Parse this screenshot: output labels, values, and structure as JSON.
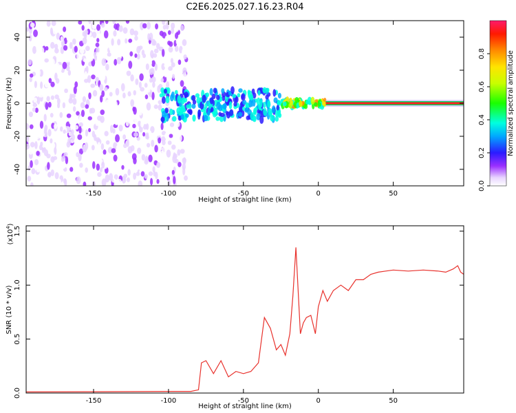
{
  "title": "C2E6.2025.027.16.23.R04",
  "chart_data": [
    {
      "type": "heatmap",
      "xlabel": "Height of straight line (km)",
      "ylabel": "Frequency (Hz)",
      "xlim": [
        -195,
        97
      ],
      "ylim": [
        -50,
        50
      ],
      "x_ticks": [
        -150,
        -100,
        -50,
        0,
        50
      ],
      "y_ticks": [
        -40,
        -20,
        0,
        20,
        40
      ],
      "grid": false,
      "description_regions": [
        {
          "x_range": [
            -195,
            -88
          ],
          "freq_range": [
            -50,
            50
          ],
          "amplitude": [
            0.0,
            0.15
          ],
          "pattern": "scattered noise"
        },
        {
          "x_range": [
            -105,
            -25
          ],
          "freq_range": [
            -10,
            8
          ],
          "amplitude": [
            0.2,
            0.5
          ],
          "pattern": "broadened echo band"
        },
        {
          "x_range": [
            -25,
            5
          ],
          "freq_range": [
            -2,
            2
          ],
          "amplitude": [
            0.4,
            0.9
          ],
          "pattern": "narrowing echo"
        },
        {
          "x_range": [
            5,
            97
          ],
          "freq_range": [
            -1,
            1
          ],
          "amplitude": [
            0.9,
            1.0
          ],
          "pattern": "narrow strong line at 0 Hz"
        }
      ],
      "colorbar": {
        "label": "Normalized spectral amplitude",
        "ticks": [
          0.0,
          0.2,
          0.4,
          0.6,
          0.8
        ],
        "range": [
          0.0,
          1.0
        ]
      }
    },
    {
      "type": "line",
      "xlabel": "Height of straight line (km)",
      "ylabel": "SNR (10 * v/v)",
      "y_multiplier": "(x10",
      "y_multiplier_exp": "4",
      "y_multiplier_close": ")",
      "xlim": [
        -195,
        97
      ],
      "ylim": [
        0,
        1.55
      ],
      "x_ticks": [
        -150,
        -100,
        -50,
        0,
        50
      ],
      "y_ticks": [
        0.0,
        0.5,
        1.0,
        1.5
      ],
      "grid": false,
      "series": [
        {
          "color": "#e8302b",
          "x": [
            -195,
            -150,
            -100,
            -85,
            -80,
            -78,
            -75,
            -70,
            -65,
            -60,
            -55,
            -50,
            -45,
            -40,
            -36,
            -32,
            -28,
            -25,
            -22,
            -19,
            -17,
            -15,
            -12,
            -10,
            -8,
            -5,
            -2,
            0,
            3,
            6,
            10,
            15,
            20,
            25,
            30,
            35,
            40,
            45,
            50,
            60,
            70,
            80,
            85,
            90,
            93,
            95,
            97
          ],
          "values": [
            0.01,
            0.012,
            0.015,
            0.015,
            0.03,
            0.28,
            0.3,
            0.18,
            0.3,
            0.15,
            0.2,
            0.18,
            0.2,
            0.28,
            0.7,
            0.6,
            0.4,
            0.45,
            0.35,
            0.55,
            0.9,
            1.35,
            0.55,
            0.65,
            0.7,
            0.72,
            0.55,
            0.8,
            0.95,
            0.85,
            0.95,
            1.0,
            0.95,
            1.05,
            1.05,
            1.1,
            1.12,
            1.13,
            1.14,
            1.13,
            1.14,
            1.13,
            1.12,
            1.15,
            1.18,
            1.12,
            1.1
          ]
        }
      ]
    }
  ]
}
